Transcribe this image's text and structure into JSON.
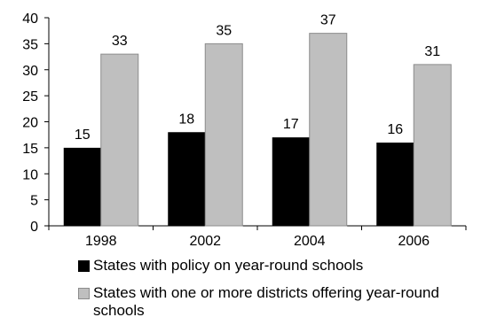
{
  "chart_data": {
    "type": "bar",
    "categories": [
      "1998",
      "2002",
      "2004",
      "2006"
    ],
    "series": [
      {
        "name": "States with policy on year-round schools",
        "values": [
          15,
          18,
          17,
          16
        ],
        "color": "#000000"
      },
      {
        "name": "States with one or more districts offering year-round schools",
        "values": [
          33,
          35,
          37,
          31
        ],
        "color": "#bfbfbf"
      }
    ],
    "title": "",
    "xlabel": "",
    "ylabel": "",
    "ylim": [
      0,
      40
    ],
    "yticks": [
      "0",
      "5",
      "10",
      "15",
      "20",
      "25",
      "30",
      "35",
      "40"
    ],
    "data_labels": true,
    "grid": false,
    "legend_position": "bottom"
  }
}
